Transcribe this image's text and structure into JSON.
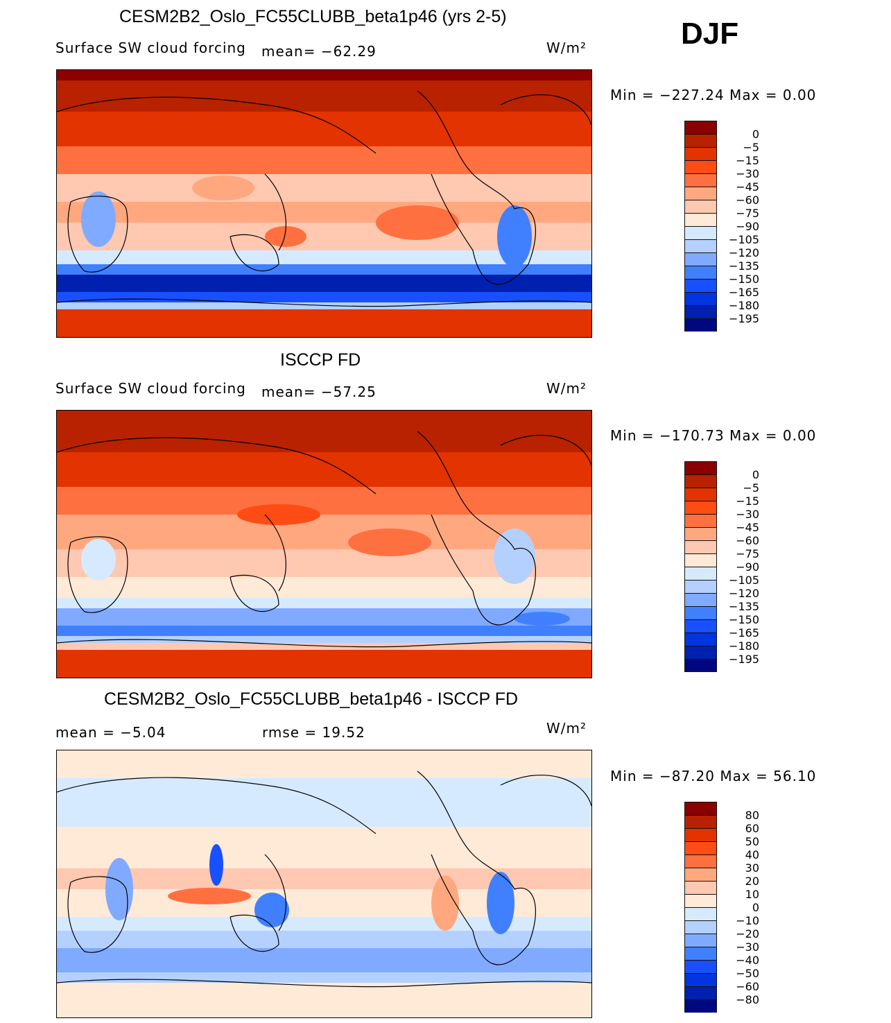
{
  "season": "DJF",
  "colors": [
    "#8b0000",
    "#b82200",
    "#e33300",
    "#ff4c14",
    "#ff7040",
    "#ffa880",
    "#ffc8b0",
    "#ffead8",
    "#d6eaff",
    "#b4d0ff",
    "#80aaff",
    "#4080ff",
    "#1850ff",
    "#0035e0",
    "#0020b0",
    "#000880"
  ],
  "panels": [
    {
      "title": "CESM2B2_Oslo_FC55CLUBB_beta1p46 (yrs 2-5)",
      "left": "Surface  SW  cloud  forcing",
      "center": "mean=  −62.29",
      "units": "W/m²",
      "minmax": "Min  =  −227.24  Max  =     0.00",
      "levels": [
        "0",
        "−5",
        "−15",
        "−30",
        "−45",
        "−60",
        "−75",
        "−90",
        "−105",
        "−120",
        "−135",
        "−150",
        "−165",
        "−180",
        "−195"
      ]
    },
    {
      "title": "ISCCP FD",
      "left": "Surface  SW  cloud  forcing",
      "center": "mean=  −57.25",
      "units": "W/m²",
      "minmax": "Min  =  −170.73  Max  =     0.00",
      "levels": [
        "0",
        "−5",
        "−15",
        "−30",
        "−45",
        "−60",
        "−75",
        "−90",
        "−105",
        "−120",
        "−135",
        "−150",
        "−165",
        "−180",
        "−195"
      ]
    },
    {
      "title": "CESM2B2_Oslo_FC55CLUBB_beta1p46 - ISCCP FD",
      "left": "mean  =    −5.04",
      "center": "rmse  =    19.52",
      "units": "W/m²",
      "minmax": "Min  =  −87.20  Max  =   56.10",
      "levels": [
        "80",
        "60",
        "50",
        "40",
        "30",
        "20",
        "10",
        "0",
        "−10",
        "−20",
        "−30",
        "−40",
        "−50",
        "−60",
        "−80"
      ]
    }
  ]
}
